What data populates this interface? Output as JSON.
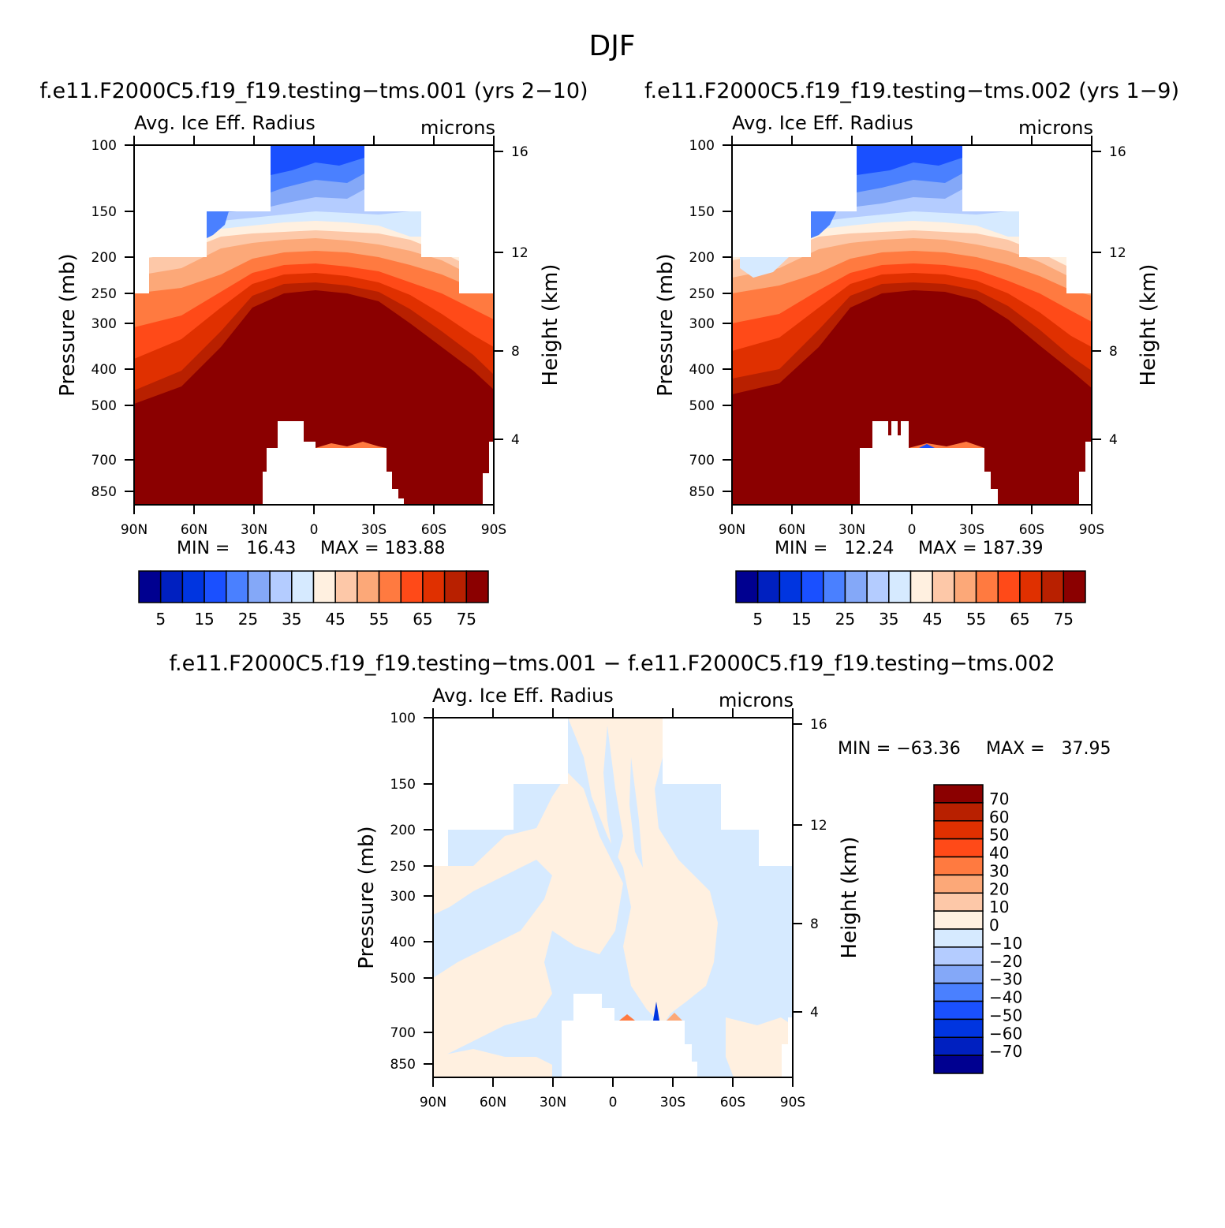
{
  "title": "DJF",
  "shared_axes": {
    "x_ticks": [
      "90N",
      "60N",
      "30N",
      "0",
      "30S",
      "60S",
      "90S"
    ],
    "p_ticks": [
      100,
      150,
      200,
      250,
      300,
      400,
      500,
      700,
      850
    ],
    "h_ticks": [
      4,
      8,
      12,
      16
    ],
    "ylabel_left": "Pressure (mb)",
    "ylabel_right": "Height (km)",
    "var_label": "Avg. Ice Eff. Radius",
    "units": "microns"
  },
  "chart_data": [
    {
      "type": "heatmap",
      "title": "f.e11.F2000C5.f19_f19.testing−tms.001 (yrs 2−10)",
      "xlabel": "",
      "ylabel": "Pressure (mb)",
      "ylim": [
        1000,
        100
      ],
      "variable": "Avg. Ice Eff. Radius",
      "units": "microns",
      "min_text": "MIN =   16.43",
      "max_text": "MAX = 183.88",
      "min": 16.43,
      "max": 183.88,
      "colorbar_levels": [
        5,
        10,
        15,
        20,
        25,
        30,
        35,
        40,
        45,
        50,
        55,
        60,
        65,
        70,
        75
      ],
      "colorbar_labels": [
        "5",
        "15",
        "25",
        "35",
        "45",
        "55",
        "65",
        "75"
      ],
      "colors": [
        "#000090",
        "#0020c0",
        "#0035e0",
        "#1a50ff",
        "#4a80ff",
        "#84a8f8",
        "#b4ccff",
        "#d6eaff",
        "#fff0e0",
        "#fdc8a8",
        "#fca878",
        "#ff7a40",
        "#ff4a18",
        "#e03000",
        "#b82000",
        "#8b0000"
      ]
    },
    {
      "type": "heatmap",
      "title": "f.e11.F2000C5.f19_f19.testing−tms.002 (yrs 1−9)",
      "xlabel": "",
      "ylabel": "Pressure (mb)",
      "ylim": [
        1000,
        100
      ],
      "variable": "Avg. Ice Eff. Radius",
      "units": "microns",
      "min_text": "MIN =   12.24",
      "max_text": "MAX = 187.39",
      "min": 12.24,
      "max": 187.39,
      "colorbar_levels": [
        5,
        10,
        15,
        20,
        25,
        30,
        35,
        40,
        45,
        50,
        55,
        60,
        65,
        70,
        75
      ],
      "colorbar_labels": [
        "5",
        "15",
        "25",
        "35",
        "45",
        "55",
        "65",
        "75"
      ],
      "colors": [
        "#000090",
        "#0020c0",
        "#0035e0",
        "#1a50ff",
        "#4a80ff",
        "#84a8f8",
        "#b4ccff",
        "#d6eaff",
        "#fff0e0",
        "#fdc8a8",
        "#fca878",
        "#ff7a40",
        "#ff4a18",
        "#e03000",
        "#b82000",
        "#8b0000"
      ]
    },
    {
      "type": "heatmap",
      "title": "f.e11.F2000C5.f19_f19.testing−tms.001 − f.e11.F2000C5.f19_f19.testing−tms.002",
      "xlabel": "",
      "ylabel": "Pressure (mb)",
      "ylim": [
        1000,
        100
      ],
      "variable": "Avg. Ice Eff. Radius",
      "units": "microns",
      "min_text": "MIN = −63.36",
      "max_text": "MAX =   37.95",
      "min": -63.36,
      "max": 37.95,
      "colorbar_levels": [
        -70,
        -60,
        -50,
        -40,
        -30,
        -20,
        -10,
        0,
        10,
        20,
        30,
        40,
        50,
        60,
        70
      ],
      "colorbar_labels": [
        "70",
        "60",
        "50",
        "40",
        "30",
        "20",
        "10",
        "0",
        "−10",
        "−20",
        "−30",
        "−40",
        "−50",
        "−60",
        "−70"
      ],
      "colors": [
        "#000090",
        "#0020c0",
        "#0035e0",
        "#1a50ff",
        "#4a80ff",
        "#84a8f8",
        "#b4ccff",
        "#d6eaff",
        "#fff0e0",
        "#fdc8a8",
        "#fca878",
        "#ff7a40",
        "#ff4a18",
        "#e03000",
        "#b82000",
        "#8b0000"
      ]
    }
  ]
}
